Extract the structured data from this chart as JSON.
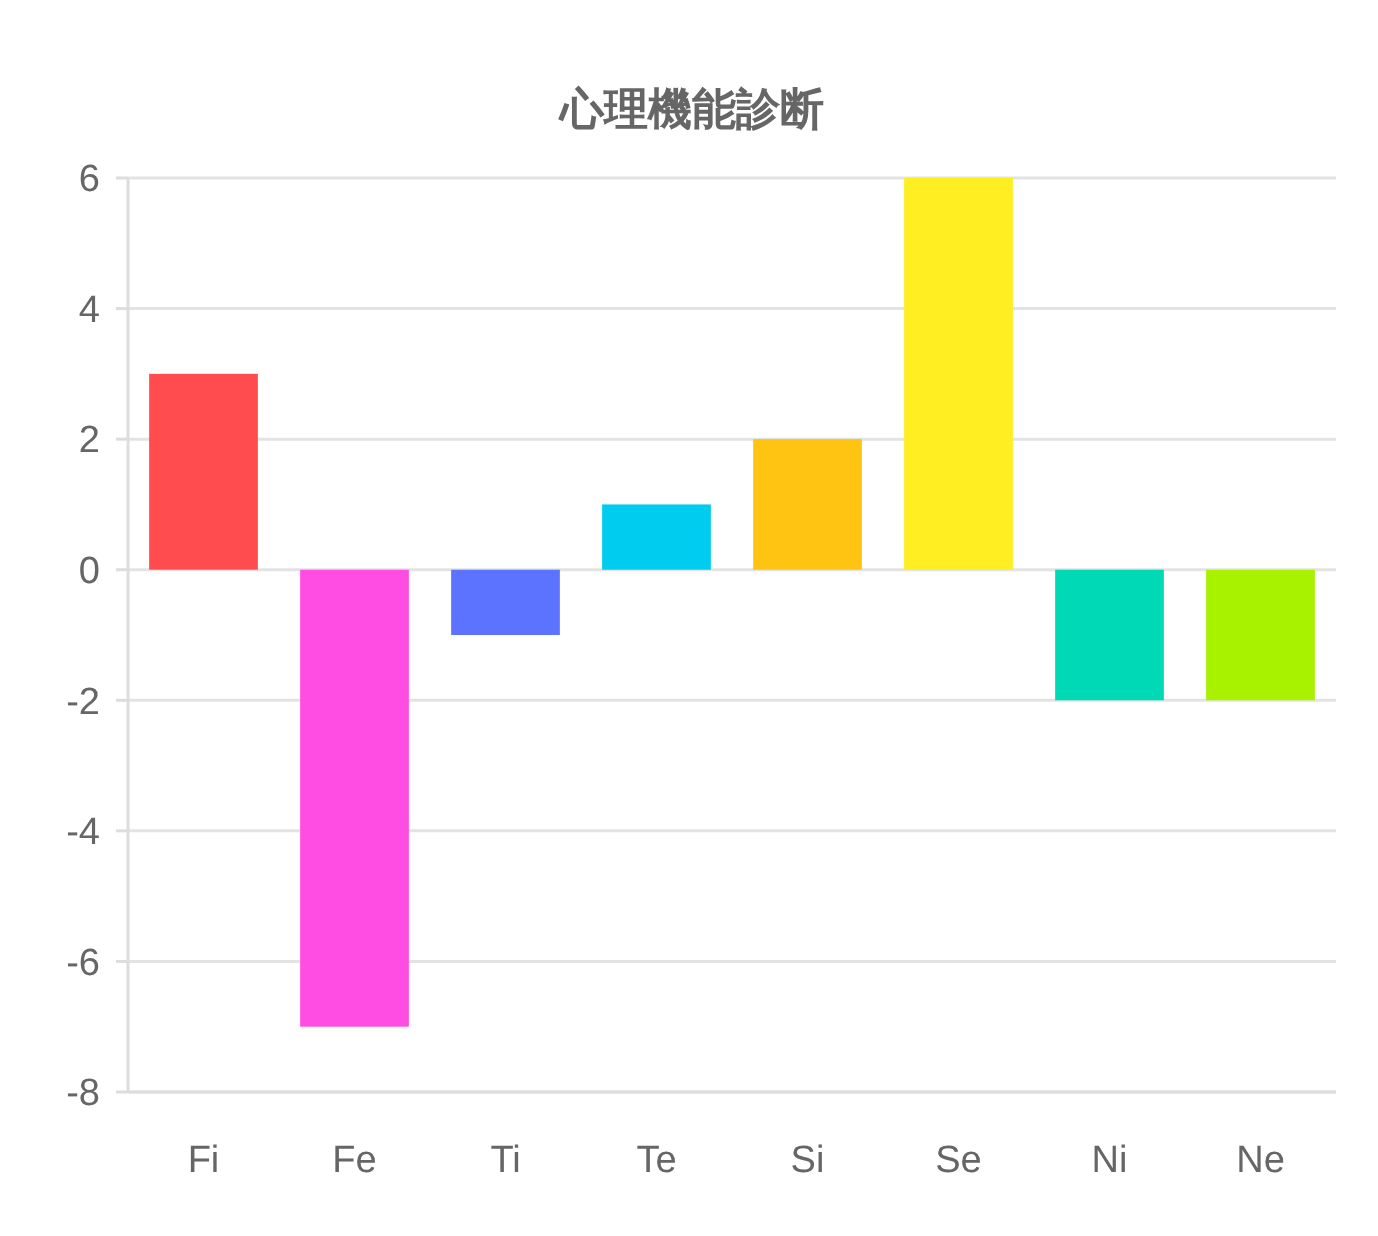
{
  "chart_data": {
    "type": "bar",
    "title": "心理機能診断",
    "categories": [
      "Fi",
      "Fe",
      "Ti",
      "Te",
      "Si",
      "Se",
      "Ni",
      "Ne"
    ],
    "values": [
      3,
      -7,
      -1,
      1,
      2,
      6,
      -2,
      -2
    ],
    "colors": [
      "#ff4d4f",
      "#ff4de3",
      "#5b73ff",
      "#00ccf0",
      "#ffc312",
      "#ffee22",
      "#00d9b6",
      "#a8f200"
    ],
    "ylim": [
      -8,
      6
    ],
    "yticks": [
      -8,
      -6,
      -4,
      -2,
      0,
      2,
      4,
      6
    ],
    "grid": "y"
  }
}
